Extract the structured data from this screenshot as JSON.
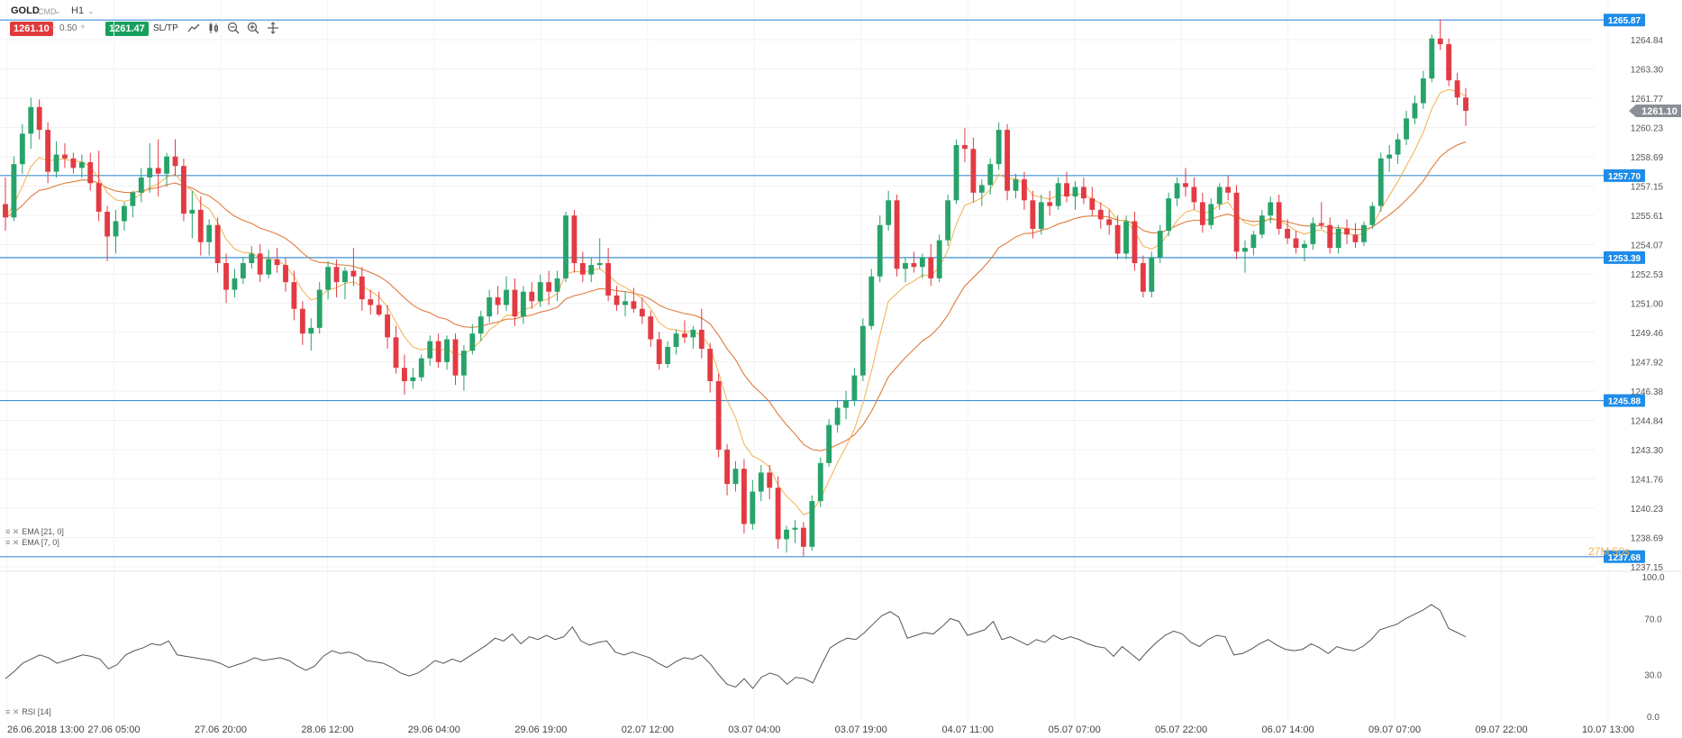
{
  "toolbar": {
    "symbol": "GOLD",
    "subtitle": "CMD",
    "timeframe": "H1",
    "sell_price": "1261.10",
    "volume": "0.50",
    "minus": "–",
    "plus": "+",
    "buy_price": "1261.47",
    "sltp_label": "SL/TP",
    "caret": "⌄"
  },
  "indicators": {
    "ema21_label": "EMA [21, 0]",
    "ema7_label": "EMA [7, 0]",
    "rsi_label": "RSI [14]"
  },
  "colors": {
    "bull": "#27a36a",
    "bear": "#e23b43",
    "ema7": "#f2b04e",
    "ema21": "#e07b3c",
    "hline": "#3f8fd6",
    "tag": "#1e8ce8",
    "current": "#8a8f96"
  },
  "chart_data": {
    "type": "candlestick",
    "symbol": "GOLD",
    "timeframe": "H1",
    "current_price": "1261.10",
    "countdown": "27M 50s",
    "y_ticks": [
      "1264.84",
      "1263.30",
      "1261.77",
      "1260.23",
      "1258.69",
      "1257.15",
      "1255.61",
      "1254.07",
      "1252.53",
      "1251.00",
      "1249.46",
      "1247.92",
      "1246.38",
      "1244.84",
      "1243.30",
      "1241.76",
      "1240.23",
      "1238.69",
      "1237.15"
    ],
    "ylim": [
      1237.15,
      1266.4
    ],
    "horizontal_lines": [
      "1265.87",
      "1257.70",
      "1253.39",
      "1245.88",
      "1237.68"
    ],
    "x_labels": [
      "26.06.2018 13:00",
      "27.06 05:00",
      "27.06 20:00",
      "28.06 12:00",
      "29.06 04:00",
      "29.06 19:00",
      "02.07 12:00",
      "03.07 04:00",
      "03.07 19:00",
      "04.07 11:00",
      "05.07 07:00",
      "05.07 22:00",
      "06.07 14:00",
      "09.07 07:00",
      "09.07 22:00",
      "10.07 13:00"
    ],
    "rsi_ticks": [
      "100.0",
      "70.0",
      "30.0",
      "0.0"
    ],
    "candles": [
      [
        1256.2,
        1257.6,
        1254.8,
        1255.5
      ],
      [
        1255.5,
        1258.7,
        1255.3,
        1258.3
      ],
      [
        1258.3,
        1260.4,
        1257.8,
        1259.9
      ],
      [
        1259.9,
        1261.8,
        1259.1,
        1261.3
      ],
      [
        1261.3,
        1261.7,
        1259.6,
        1260.1
      ],
      [
        1260.1,
        1260.5,
        1257.3,
        1257.9
      ],
      [
        1257.9,
        1259.5,
        1257.6,
        1258.8
      ],
      [
        1258.8,
        1259.4,
        1258.1,
        1258.6
      ],
      [
        1258.6,
        1258.9,
        1257.8,
        1258.1
      ],
      [
        1258.1,
        1258.8,
        1257.6,
        1258.4
      ],
      [
        1258.4,
        1258.9,
        1256.9,
        1257.3
      ],
      [
        1257.3,
        1259.0,
        1255.3,
        1255.8
      ],
      [
        1255.8,
        1256.1,
        1253.2,
        1254.5
      ],
      [
        1254.5,
        1255.9,
        1253.6,
        1255.3
      ],
      [
        1255.3,
        1256.3,
        1254.8,
        1256.1
      ],
      [
        1256.1,
        1256.9,
        1255.5,
        1256.8
      ],
      [
        1256.8,
        1258.1,
        1256.3,
        1257.6
      ],
      [
        1257.6,
        1259.4,
        1256.8,
        1258.1
      ],
      [
        1258.1,
        1259.6,
        1256.6,
        1257.8
      ],
      [
        1257.8,
        1258.9,
        1257.1,
        1258.7
      ],
      [
        1258.7,
        1259.6,
        1257.7,
        1258.2
      ],
      [
        1258.2,
        1258.6,
        1255.3,
        1255.7
      ],
      [
        1255.7,
        1256.9,
        1254.4,
        1255.9
      ],
      [
        1255.9,
        1256.6,
        1253.5,
        1254.2
      ],
      [
        1254.2,
        1255.4,
        1253.5,
        1255.1
      ],
      [
        1255.1,
        1255.5,
        1252.6,
        1253.1
      ],
      [
        1253.1,
        1253.6,
        1251.0,
        1251.7
      ],
      [
        1251.7,
        1252.8,
        1251.3,
        1252.3
      ],
      [
        1252.3,
        1253.4,
        1252.0,
        1253.1
      ],
      [
        1253.1,
        1254.0,
        1252.8,
        1253.6
      ],
      [
        1253.6,
        1254.1,
        1252.1,
        1252.5
      ],
      [
        1252.5,
        1253.8,
        1252.3,
        1253.3
      ],
      [
        1253.3,
        1253.9,
        1252.6,
        1253.0
      ],
      [
        1253.0,
        1253.4,
        1251.6,
        1252.1
      ],
      [
        1252.1,
        1252.7,
        1250.1,
        1250.7
      ],
      [
        1250.7,
        1251.1,
        1248.8,
        1249.4
      ],
      [
        1249.4,
        1250.2,
        1248.5,
        1249.7
      ],
      [
        1249.7,
        1252.1,
        1249.4,
        1251.7
      ],
      [
        1251.7,
        1253.2,
        1251.2,
        1252.9
      ],
      [
        1252.9,
        1253.3,
        1251.3,
        1252.1
      ],
      [
        1252.1,
        1252.9,
        1251.2,
        1252.7
      ],
      [
        1252.7,
        1253.9,
        1251.9,
        1252.4
      ],
      [
        1252.4,
        1252.9,
        1250.6,
        1251.2
      ],
      [
        1251.2,
        1251.7,
        1250.4,
        1250.9
      ],
      [
        1250.9,
        1251.6,
        1250.3,
        1250.4
      ],
      [
        1250.4,
        1250.9,
        1248.6,
        1249.2
      ],
      [
        1249.2,
        1249.8,
        1247.3,
        1247.6
      ],
      [
        1247.6,
        1248.3,
        1246.2,
        1246.9
      ],
      [
        1246.9,
        1247.6,
        1246.5,
        1247.1
      ],
      [
        1247.1,
        1248.3,
        1246.9,
        1248.1
      ],
      [
        1248.1,
        1249.3,
        1247.7,
        1249.0
      ],
      [
        1249.0,
        1249.4,
        1247.6,
        1247.9
      ],
      [
        1247.9,
        1249.3,
        1247.5,
        1249.1
      ],
      [
        1249.1,
        1249.4,
        1246.7,
        1247.2
      ],
      [
        1247.2,
        1248.8,
        1246.4,
        1248.5
      ],
      [
        1248.5,
        1249.9,
        1248.3,
        1249.4
      ],
      [
        1249.4,
        1250.6,
        1249.0,
        1250.3
      ],
      [
        1250.3,
        1251.7,
        1250.0,
        1251.3
      ],
      [
        1251.3,
        1251.9,
        1250.4,
        1250.9
      ],
      [
        1250.9,
        1252.4,
        1250.6,
        1251.7
      ],
      [
        1251.7,
        1252.3,
        1249.8,
        1250.3
      ],
      [
        1250.3,
        1251.9,
        1249.9,
        1251.6
      ],
      [
        1251.6,
        1252.1,
        1250.7,
        1251.1
      ],
      [
        1251.1,
        1252.5,
        1250.8,
        1252.1
      ],
      [
        1252.1,
        1252.7,
        1250.9,
        1251.6
      ],
      [
        1251.6,
        1252.7,
        1251.1,
        1252.3
      ],
      [
        1252.3,
        1255.8,
        1252.1,
        1255.6
      ],
      [
        1255.6,
        1255.9,
        1252.6,
        1253.1
      ],
      [
        1253.1,
        1253.7,
        1252.1,
        1252.5
      ],
      [
        1252.5,
        1253.4,
        1252.1,
        1253.0
      ],
      [
        1253.0,
        1254.4,
        1252.8,
        1253.1
      ],
      [
        1253.1,
        1253.9,
        1251.1,
        1251.4
      ],
      [
        1251.4,
        1251.9,
        1250.6,
        1250.9
      ],
      [
        1250.9,
        1251.6,
        1250.3,
        1251.1
      ],
      [
        1251.1,
        1251.8,
        1250.5,
        1250.7
      ],
      [
        1250.7,
        1251.3,
        1249.9,
        1250.3
      ],
      [
        1250.3,
        1250.6,
        1248.7,
        1249.1
      ],
      [
        1249.1,
        1249.5,
        1247.5,
        1247.8
      ],
      [
        1247.8,
        1249.0,
        1247.6,
        1248.7
      ],
      [
        1248.7,
        1249.6,
        1248.3,
        1249.4
      ],
      [
        1249.4,
        1250.1,
        1248.9,
        1249.2
      ],
      [
        1249.2,
        1249.8,
        1248.6,
        1249.6
      ],
      [
        1249.6,
        1250.7,
        1248.1,
        1248.6
      ],
      [
        1248.6,
        1248.9,
        1246.3,
        1246.9
      ],
      [
        1246.9,
        1247.3,
        1242.9,
        1243.3
      ],
      [
        1243.3,
        1243.6,
        1240.9,
        1241.5
      ],
      [
        1241.5,
        1242.7,
        1241.1,
        1242.3
      ],
      [
        1242.3,
        1242.8,
        1238.9,
        1239.4
      ],
      [
        1239.4,
        1241.7,
        1239.1,
        1241.1
      ],
      [
        1241.1,
        1242.5,
        1240.6,
        1242.1
      ],
      [
        1242.1,
        1242.5,
        1240.7,
        1241.3
      ],
      [
        1241.3,
        1241.9,
        1238.1,
        1238.6
      ],
      [
        1238.6,
        1239.3,
        1237.9,
        1239.1
      ],
      [
        1239.1,
        1239.6,
        1238.4,
        1239.2
      ],
      [
        1239.2,
        1239.5,
        1237.7,
        1238.2
      ],
      [
        1238.2,
        1240.9,
        1238.0,
        1240.6
      ],
      [
        1240.6,
        1242.9,
        1240.3,
        1242.6
      ],
      [
        1242.6,
        1244.9,
        1242.4,
        1244.6
      ],
      [
        1244.6,
        1245.9,
        1244.2,
        1245.5
      ],
      [
        1245.5,
        1246.4,
        1244.9,
        1245.9
      ],
      [
        1245.9,
        1247.6,
        1245.6,
        1247.2
      ],
      [
        1247.2,
        1250.2,
        1246.9,
        1249.8
      ],
      [
        1249.8,
        1252.8,
        1249.6,
        1252.4
      ],
      [
        1252.4,
        1255.6,
        1252.1,
        1255.1
      ],
      [
        1255.1,
        1256.9,
        1254.8,
        1256.4
      ],
      [
        1256.4,
        1256.7,
        1252.4,
        1252.8
      ],
      [
        1252.8,
        1253.4,
        1252.1,
        1253.1
      ],
      [
        1253.1,
        1253.7,
        1252.6,
        1252.9
      ],
      [
        1252.9,
        1253.6,
        1252.3,
        1253.4
      ],
      [
        1253.4,
        1254.1,
        1251.9,
        1252.3
      ],
      [
        1252.3,
        1254.6,
        1252.1,
        1254.3
      ],
      [
        1254.3,
        1256.7,
        1254.0,
        1256.4
      ],
      [
        1256.4,
        1259.6,
        1256.2,
        1259.3
      ],
      [
        1259.3,
        1260.2,
        1258.4,
        1259.1
      ],
      [
        1259.1,
        1259.7,
        1256.3,
        1256.8
      ],
      [
        1256.8,
        1257.5,
        1256.1,
        1257.2
      ],
      [
        1257.2,
        1258.6,
        1256.7,
        1258.3
      ],
      [
        1258.3,
        1260.5,
        1258.0,
        1260.1
      ],
      [
        1260.1,
        1260.4,
        1256.4,
        1256.9
      ],
      [
        1256.9,
        1257.8,
        1256.5,
        1257.5
      ],
      [
        1257.5,
        1257.9,
        1255.9,
        1256.4
      ],
      [
        1256.4,
        1256.9,
        1254.4,
        1254.9
      ],
      [
        1254.9,
        1256.7,
        1254.6,
        1256.3
      ],
      [
        1256.3,
        1256.9,
        1255.6,
        1256.1
      ],
      [
        1256.1,
        1257.6,
        1255.9,
        1257.3
      ],
      [
        1257.3,
        1257.9,
        1256.3,
        1256.6
      ],
      [
        1256.6,
        1257.4,
        1255.9,
        1257.1
      ],
      [
        1257.1,
        1257.6,
        1256.2,
        1256.5
      ],
      [
        1256.5,
        1257.1,
        1255.6,
        1255.9
      ],
      [
        1255.9,
        1256.3,
        1254.9,
        1255.4
      ],
      [
        1255.4,
        1255.9,
        1254.6,
        1255.1
      ],
      [
        1255.1,
        1255.6,
        1253.3,
        1253.6
      ],
      [
        1253.6,
        1255.6,
        1253.3,
        1255.3
      ],
      [
        1255.3,
        1255.8,
        1252.7,
        1253.1
      ],
      [
        1253.1,
        1253.5,
        1251.3,
        1251.6
      ],
      [
        1251.6,
        1253.7,
        1251.3,
        1253.4
      ],
      [
        1253.4,
        1255.1,
        1253.1,
        1254.8
      ],
      [
        1254.8,
        1256.8,
        1254.5,
        1256.5
      ],
      [
        1256.5,
        1257.6,
        1256.1,
        1257.3
      ],
      [
        1257.3,
        1258.1,
        1256.6,
        1257.1
      ],
      [
        1257.1,
        1257.6,
        1255.9,
        1256.3
      ],
      [
        1256.3,
        1256.8,
        1254.7,
        1255.1
      ],
      [
        1255.1,
        1256.5,
        1254.9,
        1256.2
      ],
      [
        1256.2,
        1257.3,
        1255.9,
        1257.1
      ],
      [
        1257.1,
        1257.7,
        1256.4,
        1256.8
      ],
      [
        1256.8,
        1257.2,
        1253.3,
        1253.7
      ],
      [
        1253.7,
        1254.3,
        1252.6,
        1253.9
      ],
      [
        1253.9,
        1254.8,
        1253.5,
        1254.6
      ],
      [
        1254.6,
        1255.9,
        1254.4,
        1255.6
      ],
      [
        1255.6,
        1256.6,
        1255.2,
        1256.3
      ],
      [
        1256.3,
        1256.7,
        1254.6,
        1254.9
      ],
      [
        1254.9,
        1255.4,
        1254.1,
        1254.4
      ],
      [
        1254.4,
        1254.8,
        1253.6,
        1253.9
      ],
      [
        1253.9,
        1254.3,
        1253.2,
        1254.1
      ],
      [
        1254.1,
        1255.5,
        1253.8,
        1255.2
      ],
      [
        1255.2,
        1256.3,
        1254.9,
        1255.1
      ],
      [
        1255.1,
        1255.5,
        1253.6,
        1253.9
      ],
      [
        1253.9,
        1255.1,
        1253.6,
        1254.9
      ],
      [
        1254.9,
        1255.4,
        1254.1,
        1254.6
      ],
      [
        1254.6,
        1255.2,
        1253.9,
        1254.2
      ],
      [
        1254.2,
        1255.3,
        1254.0,
        1255.1
      ],
      [
        1255.1,
        1256.3,
        1254.9,
        1256.1
      ],
      [
        1256.1,
        1258.9,
        1255.8,
        1258.6
      ],
      [
        1258.6,
        1259.3,
        1257.9,
        1258.8
      ],
      [
        1258.8,
        1259.9,
        1258.3,
        1259.6
      ],
      [
        1259.6,
        1261.1,
        1259.3,
        1260.7
      ],
      [
        1260.7,
        1261.9,
        1260.4,
        1261.5
      ],
      [
        1261.5,
        1263.2,
        1261.2,
        1262.8
      ],
      [
        1262.8,
        1265.1,
        1262.6,
        1264.9
      ],
      [
        1264.9,
        1265.9,
        1264.3,
        1264.6
      ],
      [
        1264.6,
        1264.9,
        1262.4,
        1262.7
      ],
      [
        1262.7,
        1263.1,
        1261.4,
        1261.8
      ],
      [
        1261.8,
        1262.3,
        1260.3,
        1261.1
      ]
    ],
    "rsi": [
      27,
      32,
      38,
      41,
      44,
      42,
      38,
      40,
      42,
      44,
      43,
      41,
      34,
      37,
      44,
      47,
      49,
      52,
      51,
      54,
      44,
      43,
      42,
      41,
      40,
      38,
      35,
      37,
      39,
      42,
      40,
      41,
      42,
      40,
      36,
      33,
      36,
      43,
      47,
      45,
      46,
      44,
      40,
      39,
      38,
      35,
      31,
      29,
      31,
      35,
      40,
      38,
      41,
      39,
      43,
      47,
      51,
      56,
      54,
      59,
      52,
      57,
      55,
      58,
      55,
      57,
      64,
      54,
      51,
      53,
      54,
      46,
      44,
      46,
      44,
      42,
      38,
      35,
      39,
      42,
      41,
      44,
      38,
      30,
      23,
      21,
      27,
      20,
      28,
      31,
      29,
      23,
      28,
      27,
      24,
      37,
      49,
      53,
      56,
      55,
      60,
      66,
      72,
      75,
      71,
      56,
      58,
      60,
      59,
      64,
      70,
      68,
      58,
      60,
      62,
      68,
      55,
      57,
      54,
      51,
      55,
      53,
      58,
      55,
      57,
      55,
      52,
      50,
      49,
      43,
      50,
      45,
      40,
      47,
      53,
      58,
      61,
      59,
      53,
      50,
      55,
      58,
      57,
      44,
      45,
      48,
      52,
      55,
      51,
      48,
      47,
      48,
      52,
      49,
      45,
      50,
      48,
      47,
      50,
      55,
      62,
      64,
      66,
      70,
      73,
      76,
      80,
      76,
      63,
      60,
      57
    ]
  }
}
